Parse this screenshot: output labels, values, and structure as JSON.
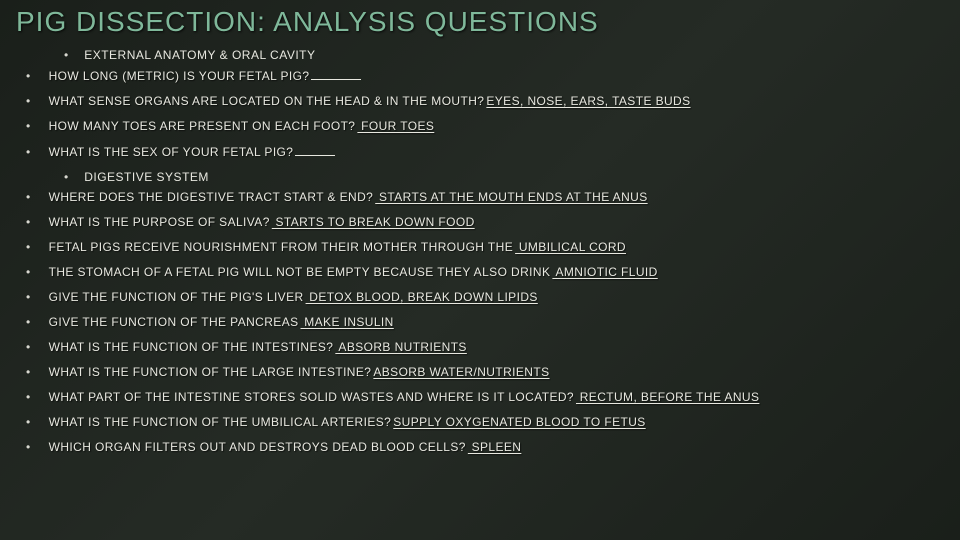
{
  "title": "PIG DISSECTION: ANALYSIS QUESTIONS",
  "colors": {
    "title": "#7fb89a",
    "text": "#e8e8e0",
    "bg_start": "#1a1f1a",
    "bg_mid": "#252b25"
  },
  "sections": [
    {
      "header": "EXTERNAL ANATOMY & ORAL CAVITY",
      "questions": [
        {
          "q": "HOW LONG (METRIC) IS YOUR FETAL PIG?",
          "a": "",
          "blank": true
        },
        {
          "q": "WHAT SENSE ORGANS ARE LOCATED ON THE HEAD & IN THE MOUTH?",
          "a": "EYES, NOSE, EARS, TASTE BUDS"
        },
        {
          "q": "HOW MANY TOES ARE PRESENT ON EACH FOOT?",
          "a": " FOUR TOES"
        },
        {
          "q": "WHAT IS THE SEX OF YOUR FETAL PIG?",
          "a": "",
          "blank": true,
          "blankWidth": 40
        }
      ]
    },
    {
      "header": "DIGESTIVE SYSTEM",
      "questions": [
        {
          "q": "WHERE DOES THE DIGESTIVE TRACT START & END?",
          "a": " STARTS AT THE MOUTH ENDS AT THE ANUS"
        },
        {
          "q": "WHAT IS THE PURPOSE OF SALIVA?",
          "a": " STARTS TO BREAK DOWN FOOD"
        },
        {
          "q": "FETAL PIGS RECEIVE NOURISHMENT FROM THEIR MOTHER THROUGH THE",
          "a": " UMBILICAL CORD"
        },
        {
          "q": "THE STOMACH OF A FETAL PIG WILL NOT BE EMPTY BECAUSE THEY ALSO DRINK",
          "a": " AMNIOTIC FLUID"
        },
        {
          "q": "GIVE THE FUNCTION OF THE PIG'S LIVER",
          "a": " DETOX BLOOD, BREAK DOWN LIPIDS"
        },
        {
          "q": "GIVE THE FUNCTION OF THE PANCREAS",
          "a": " MAKE INSULIN"
        },
        {
          "q": "WHAT IS THE FUNCTION OF THE INTESTINES?",
          "a": " ABSORB NUTRIENTS"
        },
        {
          "q": "WHAT IS THE FUNCTION OF THE LARGE INTESTINE?",
          "a": "ABSORB WATER/NUTRIENTS"
        },
        {
          "q": "WHAT PART OF THE INTESTINE STORES SOLID WASTES AND WHERE IS IT LOCATED?",
          "a": " RECTUM, BEFORE THE ANUS"
        },
        {
          "q": "WHAT IS THE FUNCTION OF THE UMBILICAL ARTERIES?",
          "a": "SUPPLY OXYGENATED BLOOD TO FETUS"
        },
        {
          "q": "WHICH ORGAN FILTERS OUT AND DESTROYS DEAD BLOOD CELLS?",
          "a": " SPLEEN"
        }
      ]
    }
  ]
}
